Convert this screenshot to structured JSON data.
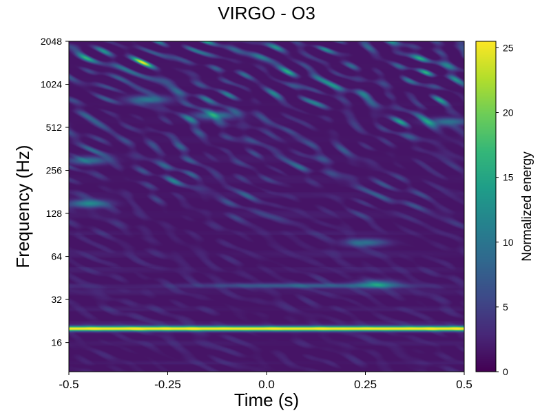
{
  "chart_data": {
    "type": "heatmap",
    "title": "VIRGO - O3",
    "xlabel": "Time (s)",
    "ylabel": "Frequency (Hz)",
    "colorbar_label": "Normalized energy",
    "xlim": [
      -0.5,
      0.5
    ],
    "ylim": [
      10,
      2048
    ],
    "yscale": "log2",
    "colormap": "viridis",
    "clim": [
      0,
      25.5
    ],
    "x_ticks": [
      -0.5,
      -0.25,
      0.0,
      0.25,
      0.5
    ],
    "x_tick_labels": [
      "-0.5",
      "-0.25",
      "0.0",
      "0.25",
      "0.5"
    ],
    "y_ticks": [
      16,
      32,
      64,
      128,
      256,
      512,
      1024,
      2048
    ],
    "y_tick_labels": [
      "16",
      "32",
      "64",
      "128",
      "256",
      "512",
      "1024",
      "2048"
    ],
    "colorbar_ticks": [
      0,
      5,
      10,
      15,
      20,
      25
    ],
    "colorbar_tick_labels": [
      "0",
      "5",
      "10",
      "15",
      "20",
      "25"
    ],
    "features": [
      {
        "kind": "line",
        "freq": 20,
        "t_start": -0.5,
        "t_end": 0.5,
        "energy": 25
      },
      {
        "kind": "line",
        "freq": 40,
        "t_start": -0.5,
        "t_end": 0.5,
        "energy": 6
      },
      {
        "kind": "blob",
        "t": 0.28,
        "freq": 41,
        "energy": 9
      },
      {
        "kind": "blob",
        "t": 0.25,
        "freq": 80,
        "energy": 8
      },
      {
        "kind": "blob",
        "t": -0.45,
        "freq": 150,
        "energy": 10
      },
      {
        "kind": "blob",
        "t": -0.45,
        "freq": 300,
        "energy": 8
      },
      {
        "kind": "blob",
        "t": -0.3,
        "freq": 800,
        "energy": 9
      },
      {
        "kind": "blob",
        "t": -0.13,
        "freq": 620,
        "energy": 9
      },
      {
        "kind": "blob",
        "t": 0.46,
        "freq": 560,
        "energy": 8
      }
    ]
  }
}
